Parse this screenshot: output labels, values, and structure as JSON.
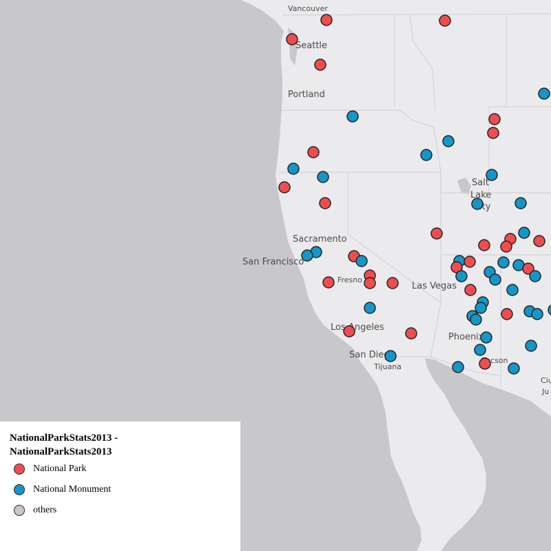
{
  "colors": {
    "national_park": "#ef4d4f",
    "national_monument": "#1596c9",
    "others": "#c8c8c8",
    "ocean": "#c8c8cc",
    "land": "#ebebed"
  },
  "cities": [
    {
      "name": "Vancouver",
      "id": "vancouver"
    },
    {
      "name": "Seattle",
      "id": "seattle"
    },
    {
      "name": "Portland",
      "id": "portland"
    },
    {
      "name": "Salt",
      "id": "salt-lake-city-1"
    },
    {
      "name": "Lake",
      "id": "salt-lake-city-2"
    },
    {
      "name": "City",
      "id": "salt-lake-city-3"
    },
    {
      "name": "Sacramento",
      "id": "sacramento"
    },
    {
      "name": "San Francisco",
      "id": "san-francisco"
    },
    {
      "name": "Fresno",
      "id": "fresno"
    },
    {
      "name": "Las Vegas",
      "id": "las-vegas"
    },
    {
      "name": "Los Angeles",
      "id": "los-angeles"
    },
    {
      "name": "Phoenix",
      "id": "phoenix"
    },
    {
      "name": "San Diego",
      "id": "san-diego"
    },
    {
      "name": "Tijuana",
      "id": "tijuana"
    },
    {
      "name": "Tucson",
      "id": "tucson"
    },
    {
      "name": "Ciu",
      "id": "ciudad-juarez-1"
    },
    {
      "name": "Ju",
      "id": "ciudad-juarez-2"
    }
  ],
  "legend": {
    "title": "NationalParkStats2013 - NationalParkStats2013",
    "items": [
      {
        "label": "National Park",
        "icon": "red-circle-icon"
      },
      {
        "label": "National Monument",
        "icon": "blue-circle-icon"
      },
      {
        "label": "others",
        "icon": "gray-circle-icon"
      }
    ]
  },
  "park_count": 39,
  "monument_count": 42
}
